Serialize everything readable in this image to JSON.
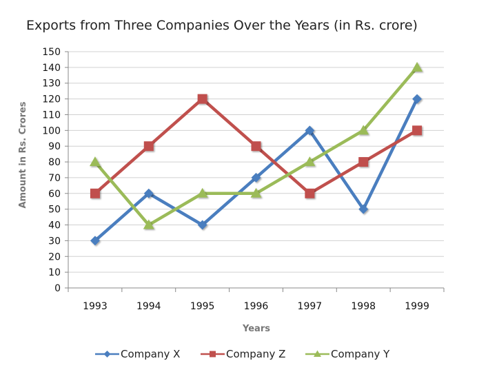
{
  "chart_data": {
    "type": "line",
    "title": "Exports from Three Companies Over the Years (in Rs. crore)",
    "xlabel": "Years",
    "ylabel": "Amount in Rs. Crores",
    "categories": [
      "1993",
      "1994",
      "1995",
      "1996",
      "1997",
      "1998",
      "1999"
    ],
    "ylim": [
      0,
      150
    ],
    "ytick_step": 10,
    "grid": true,
    "legend_position": "bottom",
    "series": [
      {
        "name": "Company X",
        "color": "#4a7ebf",
        "marker": "diamond",
        "values": [
          30,
          60,
          40,
          70,
          100,
          50,
          120
        ]
      },
      {
        "name": "Company Z",
        "color": "#c0504d",
        "marker": "square",
        "values": [
          60,
          90,
          120,
          90,
          60,
          80,
          100
        ]
      },
      {
        "name": "Company Y",
        "color": "#9bbb59",
        "marker": "triangle",
        "values": [
          80,
          40,
          60,
          60,
          80,
          100,
          140
        ]
      }
    ]
  }
}
